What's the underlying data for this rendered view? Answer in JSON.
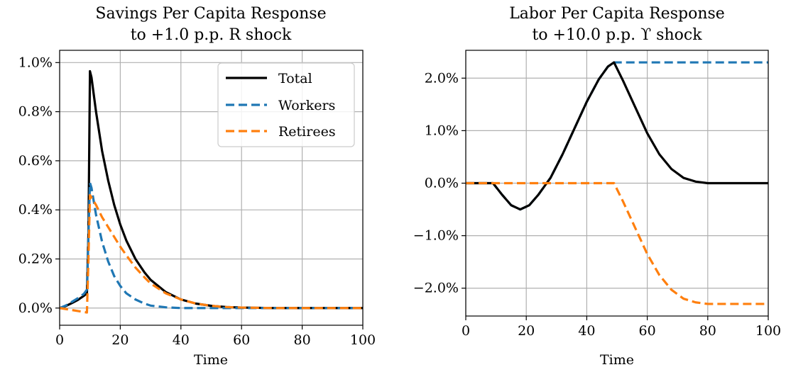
{
  "chart_data": [
    {
      "type": "line",
      "title_lines": [
        "Savings Per Capita Response",
        "to +1.0 p.p. R shock"
      ],
      "xlabel": "Time",
      "ylabel": "",
      "xlim": [
        0,
        100
      ],
      "ylim": [
        -0.07,
        1.05
      ],
      "x_ticks": [
        0,
        20,
        40,
        60,
        80,
        100
      ],
      "x_tick_labels": [
        "0",
        "20",
        "40",
        "60",
        "80",
        "100"
      ],
      "y_ticks": [
        0.0,
        0.2,
        0.4,
        0.6,
        0.8,
        1.0
      ],
      "y_tick_labels": [
        "0.0%",
        "0.2%",
        "0.4%",
        "0.6%",
        "0.8%",
        "1.0%"
      ],
      "grid": true,
      "legend": {
        "position": "top-right",
        "entries": [
          {
            "name": "Total",
            "color": "#000000",
            "dash": "solid"
          },
          {
            "name": "Workers",
            "color": "#1f77b4",
            "dash": "dashed"
          },
          {
            "name": "Retirees",
            "color": "#ff7f0e",
            "dash": "dashed"
          }
        ]
      },
      "series": [
        {
          "name": "Total",
          "color": "#000000",
          "dash": "solid",
          "x": [
            0,
            2,
            4,
            6,
            8,
            9,
            9.5,
            10,
            10.5,
            12,
            14,
            16,
            18,
            20,
            22,
            25,
            28,
            30,
            35,
            40,
            45,
            50,
            55,
            60,
            70,
            80,
            100
          ],
          "y": [
            0.0,
            0.008,
            0.02,
            0.033,
            0.05,
            0.06,
            0.3,
            0.965,
            0.94,
            0.8,
            0.64,
            0.52,
            0.42,
            0.34,
            0.275,
            0.2,
            0.145,
            0.115,
            0.065,
            0.035,
            0.018,
            0.009,
            0.004,
            0.002,
            0.0,
            0.0,
            0.0
          ]
        },
        {
          "name": "Workers",
          "color": "#1f77b4",
          "dash": "dashed",
          "x": [
            0,
            2,
            4,
            6,
            8,
            9,
            9.5,
            10,
            10.5,
            12,
            14,
            16,
            18,
            20,
            22,
            25,
            28,
            30,
            35,
            40,
            50,
            60,
            100
          ],
          "y": [
            0.0,
            0.01,
            0.025,
            0.04,
            0.058,
            0.075,
            0.3,
            0.51,
            0.49,
            0.38,
            0.27,
            0.19,
            0.13,
            0.09,
            0.06,
            0.035,
            0.018,
            0.01,
            0.003,
            0.0,
            0.0,
            0.0,
            0.0
          ]
        },
        {
          "name": "Retirees",
          "color": "#ff7f0e",
          "dash": "dashed",
          "x": [
            0,
            2,
            4,
            6,
            8,
            9,
            9.5,
            10,
            10.5,
            12,
            14,
            16,
            18,
            20,
            22,
            25,
            28,
            30,
            35,
            40,
            45,
            50,
            55,
            60,
            70,
            80,
            100
          ],
          "y": [
            0.0,
            -0.004,
            -0.008,
            -0.012,
            -0.016,
            -0.018,
            0.2,
            0.46,
            0.45,
            0.42,
            0.37,
            0.33,
            0.29,
            0.25,
            0.215,
            0.165,
            0.125,
            0.1,
            0.06,
            0.035,
            0.018,
            0.009,
            0.004,
            0.002,
            0.0,
            0.0,
            0.0
          ]
        }
      ]
    },
    {
      "type": "line",
      "title_lines": [
        "Labor Per Capita Response",
        "to +10.0 p.p. ϒ shock"
      ],
      "xlabel": "Time",
      "ylabel": "",
      "xlim": [
        0,
        100
      ],
      "ylim": [
        -2.53,
        2.53
      ],
      "x_ticks": [
        0,
        20,
        40,
        60,
        80,
        100
      ],
      "x_tick_labels": [
        "0",
        "20",
        "40",
        "60",
        "80",
        "100"
      ],
      "y_ticks": [
        2.0,
        1.0,
        0.0,
        -1.0,
        -2.0
      ],
      "y_tick_labels": [
        "2.0%",
        "1.0%",
        "0.0%",
        "−1.0%",
        "−2.0%"
      ],
      "grid": true,
      "series": [
        {
          "name": "Workers",
          "color": "#1f77b4",
          "dash": "dashed",
          "x": [
            0,
            5,
            9,
            12,
            15,
            18,
            21,
            24,
            28,
            32,
            36,
            40,
            44,
            47,
            49,
            52,
            60,
            70,
            80,
            90,
            100
          ],
          "y": [
            0.0,
            0.0,
            0.0,
            -0.22,
            -0.42,
            -0.5,
            -0.42,
            -0.22,
            0.1,
            0.55,
            1.05,
            1.55,
            1.98,
            2.22,
            2.3,
            2.3,
            2.3,
            2.3,
            2.3,
            2.3,
            2.3
          ]
        },
        {
          "name": "Total",
          "color": "#000000",
          "dash": "solid",
          "x": [
            0,
            5,
            9,
            12,
            15,
            18,
            21,
            24,
            28,
            32,
            36,
            40,
            44,
            47,
            49,
            52,
            56,
            60,
            64,
            68,
            72,
            76,
            80,
            85,
            90,
            100
          ],
          "y": [
            0.0,
            0.0,
            0.0,
            -0.22,
            -0.42,
            -0.5,
            -0.42,
            -0.22,
            0.1,
            0.55,
            1.05,
            1.55,
            1.98,
            2.22,
            2.3,
            1.95,
            1.45,
            0.95,
            0.55,
            0.27,
            0.1,
            0.03,
            0.0,
            0.0,
            0.0,
            0.0
          ]
        },
        {
          "name": "Retirees",
          "color": "#ff7f0e",
          "dash": "dashed",
          "x": [
            0,
            10,
            20,
            30,
            40,
            49,
            52,
            56,
            60,
            64,
            68,
            72,
            76,
            80,
            85,
            90,
            100
          ],
          "y": [
            0.0,
            0.0,
            0.0,
            0.0,
            0.0,
            0.0,
            -0.35,
            -0.85,
            -1.35,
            -1.75,
            -2.03,
            -2.2,
            -2.27,
            -2.3,
            -2.3,
            -2.3,
            -2.3
          ]
        }
      ]
    }
  ]
}
